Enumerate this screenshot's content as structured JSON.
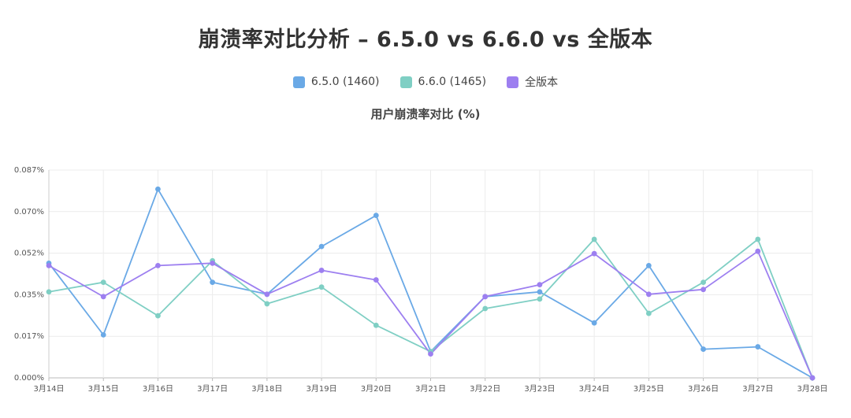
{
  "title": "崩溃率对比分析 – 6.5.0 vs 6.6.0 vs 全版本",
  "colors": {
    "s1": "#6aa9e6",
    "s2": "#7fcfc4",
    "s3": "#9d7ff0"
  },
  "legend": [
    {
      "label": "6.5.0 (1460)",
      "color": "#6aa9e6"
    },
    {
      "label": "6.6.0 (1465)",
      "color": "#7fcfc4"
    },
    {
      "label": "全版本",
      "color": "#9d7ff0"
    }
  ],
  "chart_data": {
    "type": "line",
    "title": "用户崩溃率对比 (%)",
    "categories": [
      "3月14日",
      "3月15日",
      "3月16日",
      "3月17日",
      "3月18日",
      "3月19日",
      "3月20日",
      "3月21日",
      "3月22日",
      "3月23日",
      "3月24日",
      "3月25日",
      "3月26日",
      "3月27日",
      "3月28日"
    ],
    "ylim": [
      0,
      0.087
    ],
    "yticks": [
      "0.000%",
      "0.017%",
      "0.035%",
      "0.052%",
      "0.070%",
      "0.087%"
    ],
    "grid": true,
    "legend_position": "top",
    "series": [
      {
        "name": "6.5.0 (1460)",
        "color": "#6aa9e6",
        "values": [
          0.048,
          0.018,
          0.079,
          0.04,
          0.035,
          0.055,
          0.068,
          0.011,
          0.034,
          0.036,
          0.023,
          0.047,
          0.012,
          0.013,
          0.0
        ]
      },
      {
        "name": "6.6.0 (1465)",
        "color": "#7fcfc4",
        "values": [
          0.036,
          0.04,
          0.026,
          0.049,
          0.031,
          0.038,
          0.022,
          0.011,
          0.029,
          0.033,
          0.058,
          0.027,
          0.04,
          0.058,
          0.0
        ]
      },
      {
        "name": "全版本",
        "color": "#9d7ff0",
        "values": [
          0.047,
          0.034,
          0.047,
          0.048,
          0.035,
          0.045,
          0.041,
          0.01,
          0.034,
          0.039,
          0.052,
          0.035,
          0.037,
          0.053,
          0.0
        ]
      }
    ]
  }
}
